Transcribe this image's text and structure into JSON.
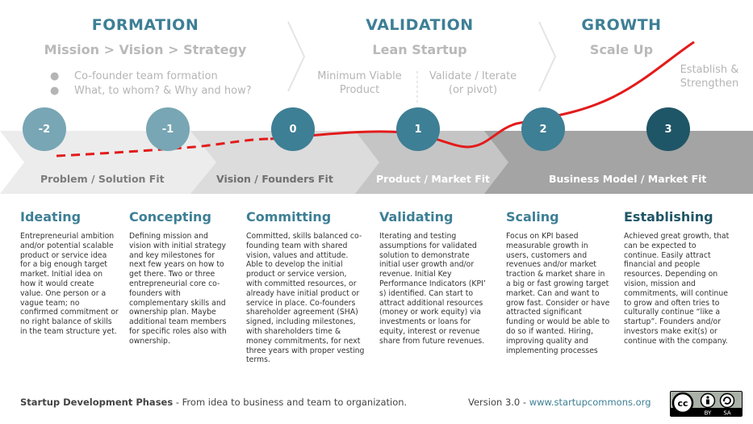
{
  "phases": {
    "formation": {
      "title": "FORMATION",
      "subtitle": "Mission  >  Vision  >  Strategy"
    },
    "validation": {
      "title": "VALIDATION",
      "subtitle": "Lean Startup"
    },
    "growth": {
      "title": "GROWTH",
      "subtitle": "Scale Up"
    }
  },
  "formation_bullets": [
    "Co-founder team formation",
    "What, to whom? & Why and how?"
  ],
  "validation_notes": {
    "mvp": "Minimum Viable Product",
    "iterate": "Validate / Iterate (or pivot)"
  },
  "growth_note": "Establish & Strengthen",
  "milestones": [
    "-2",
    "-1",
    "0",
    "1",
    "2",
    "3"
  ],
  "fits": [
    "Problem / Solution Fit",
    "Vision / Founders Fit",
    "Product / Market Fit",
    "Business Model / Market Fit"
  ],
  "stages": [
    {
      "title": "Ideating",
      "text": "Entrepreneurial ambition and/or potential scalable product or service idea for a big enough target market. Initial idea on how it would create value. One person or a vague team; no confirmed commitment or no right balance of skills in the team structure yet."
    },
    {
      "title": "Concepting",
      "text": "Defining mission and vision with initial strategy and key milestones for next few years on how to get there. Two or three entrepreneurial core co-founders with complementary skills and ownership plan. Maybe additional team members for specific roles also with ownership."
    },
    {
      "title": "Committing",
      "text": "Committed, skills balanced co-founding team with shared vision, values and attitude. Able to develop the initial product or service version, with committed resources, or already have initial product or service in place. Co-founders shareholder agreement (SHA) signed, including milestones, with shareholders time & money commitments, for next three years with proper vesting terms."
    },
    {
      "title": "Validating",
      "text": "Iterating and testing assumptions for validated solution to demonstrate initial user growth and/or revenue. Initial Key Performance Indicators (KPI’ s) identified. Can start to attract additional resources (money or work equity) via investments or loans for equity, interest or revenue share from future revenues."
    },
    {
      "title": "Scaling",
      "text": "Focus on KPI based measurable growth in users, customers and revenues and/or market traction & market share in a big or fast growing target market. Can and want to grow fast. Consider or have attracted significant funding or would be able to do so if wanted. Hiring, improving quality and implementing processes"
    },
    {
      "title": "Establishing",
      "text": "Achieved great growth, that can be expected to continue. Easily attract financial and people resources. Depending on vision, mission and commitments, will continue to grow and often tries to culturally continue “like a startup”. Founders and/or investors make exit(s) or continue with the company."
    }
  ],
  "footer": {
    "title": "Startup Development Phases",
    "tagline": " - From idea to business and team to organization.",
    "version": "Version 3.0  -  ",
    "link": "www.startupcommons.org",
    "cc": [
      "cc",
      "BY",
      "SA"
    ]
  },
  "colors": {
    "title_teal": "#3d7f95",
    "circle_light": "#78a6b4",
    "circle_mid": "#3d7f95",
    "circle_dark": "#1f5667",
    "curve_red": "#e31b1b"
  }
}
